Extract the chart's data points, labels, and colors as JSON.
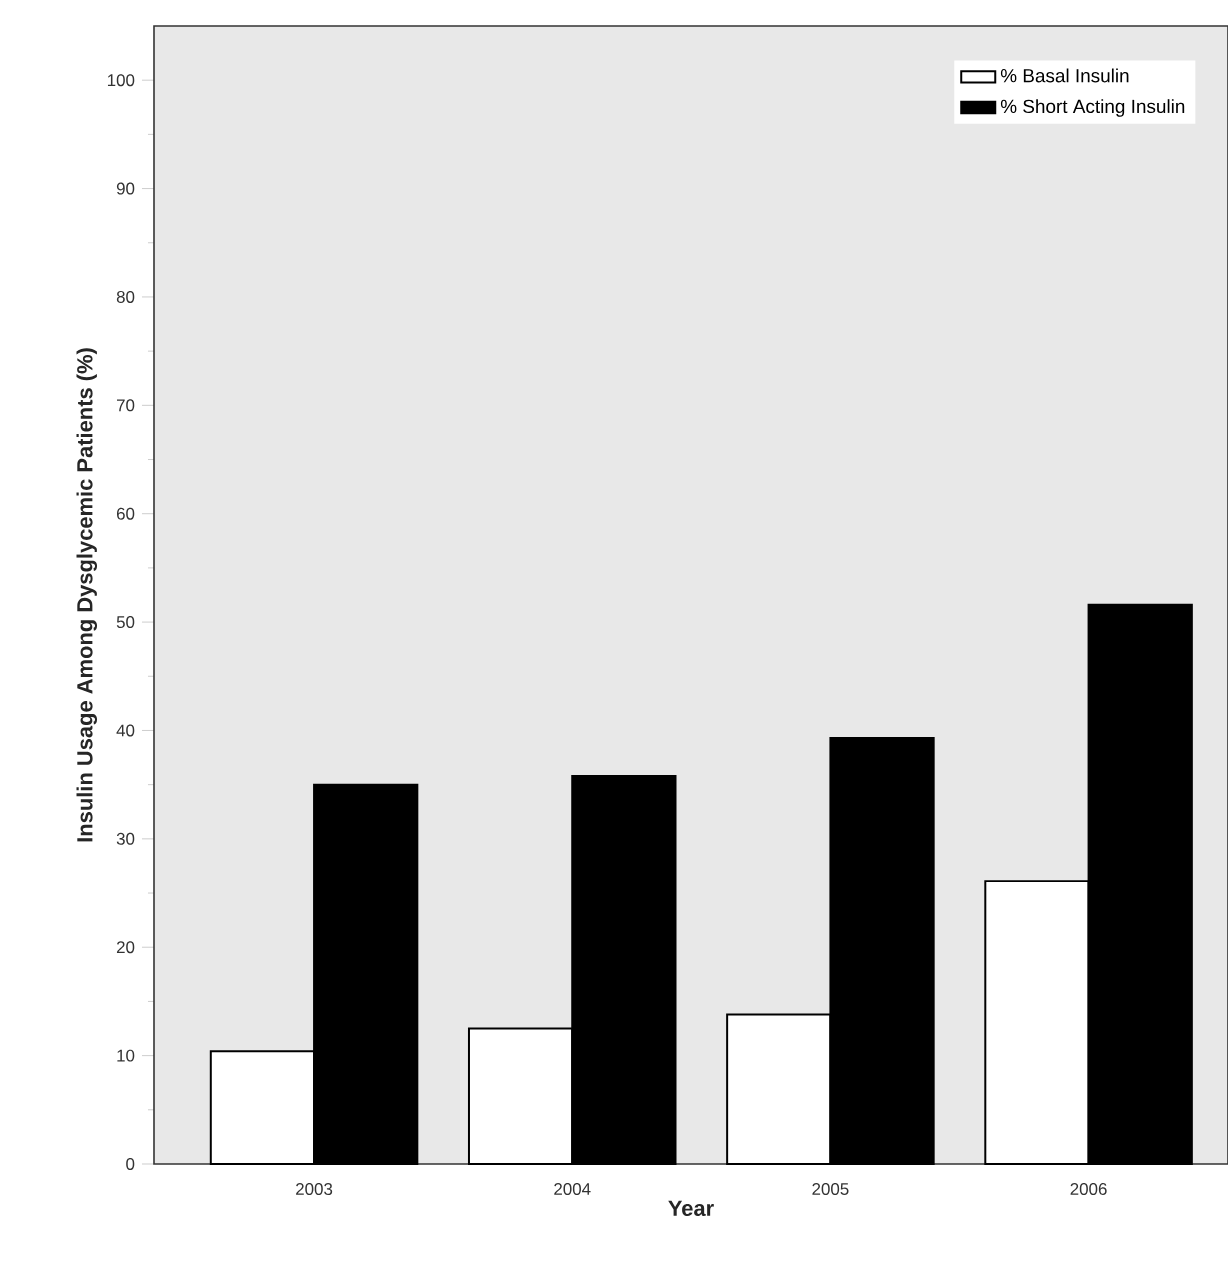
{
  "chart_data": {
    "type": "bar",
    "xlabel": "Year",
    "ylabel": "Insulin Usage Among Dysglycemic Patients (%)",
    "categories": [
      "2003",
      "2004",
      "2005",
      "2006"
    ],
    "series": [
      {
        "name": "% Basal Insulin",
        "color": "#ffffff",
        "values": [
          10.4,
          12.5,
          13.8,
          26.1
        ]
      },
      {
        "name": "% Short Acting Insulin",
        "color": "#000000",
        "values": [
          35.0,
          35.8,
          39.3,
          51.6
        ]
      }
    ],
    "ylim": [
      0,
      105
    ],
    "yticks": [
      0,
      10,
      20,
      30,
      40,
      50,
      60,
      70,
      80,
      90,
      100
    ],
    "legend": "top right",
    "grid": false
  }
}
